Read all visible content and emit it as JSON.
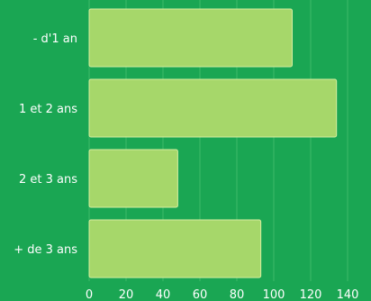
{
  "colors": {
    "background": "#1aa653",
    "bar": "#a6d76a",
    "grid": "#3dbb6a",
    "text": "#ffffff"
  },
  "chart_data": {
    "type": "bar",
    "orientation": "horizontal",
    "categories": [
      "- d'1 an",
      "1 et 2 ans",
      "2 et 3 ans",
      "+ de 3 ans"
    ],
    "values": [
      110,
      134,
      48,
      93
    ],
    "xlim": [
      0,
      140
    ],
    "xticks": [
      "0",
      "20",
      "40",
      "60",
      "80",
      "100",
      "120",
      "140"
    ],
    "grid": true,
    "legend": "none"
  }
}
